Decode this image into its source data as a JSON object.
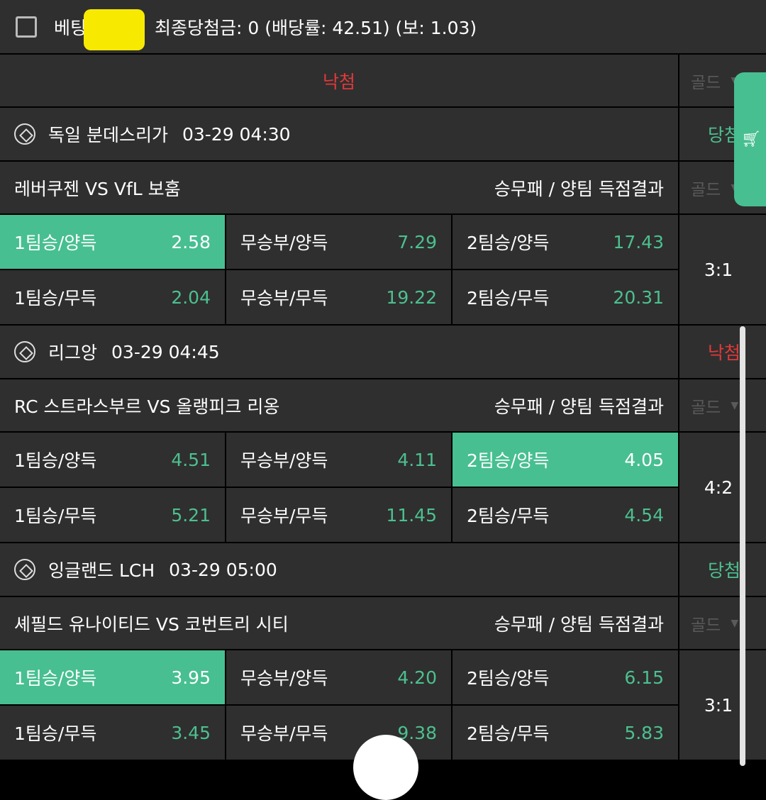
{
  "header": {
    "checkbox_checked": false,
    "label": "베팅",
    "summary": "최종당첨금: 0 (배당률: 42.51) (보: 1.03)"
  },
  "overall_result": "낙첨",
  "gold_label": "골드",
  "colors": {
    "accent": "#47bf91",
    "win": "#4cc08f",
    "lose": "#e0393a"
  },
  "games": [
    {
      "league": "독일 분데스리가",
      "time": "03-29 04:30",
      "result": "당첨",
      "match": "레버쿠젠 VS VfL 보훔",
      "market": "승무패 / 양팀 득점결과",
      "score": "3:1",
      "odds": [
        [
          {
            "label": "1팀승/양득",
            "value": "2.58",
            "selected": true
          },
          {
            "label": "무승부/양득",
            "value": "7.29"
          },
          {
            "label": "2팀승/양득",
            "value": "17.43"
          }
        ],
        [
          {
            "label": "1팀승/무득",
            "value": "2.04"
          },
          {
            "label": "무승부/무득",
            "value": "19.22"
          },
          {
            "label": "2팀승/무득",
            "value": "20.31"
          }
        ]
      ]
    },
    {
      "league": "리그앙",
      "time": "03-29 04:45",
      "result": "낙첨",
      "match": "RC 스트라스부르 VS 올랭피크 리옹",
      "market": "승무패 / 양팀 득점결과",
      "score": "4:2",
      "odds": [
        [
          {
            "label": "1팀승/양득",
            "value": "4.51"
          },
          {
            "label": "무승부/양득",
            "value": "4.11"
          },
          {
            "label": "2팀승/양득",
            "value": "4.05",
            "selected": true
          }
        ],
        [
          {
            "label": "1팀승/무득",
            "value": "5.21"
          },
          {
            "label": "무승부/무득",
            "value": "11.45"
          },
          {
            "label": "2팀승/무득",
            "value": "4.54"
          }
        ]
      ]
    },
    {
      "league": "잉글랜드 LCH",
      "time": "03-29 05:00",
      "result": "당첨",
      "match": "셰필드 유나이티드 VS 코번트리 시티",
      "market": "승무패 / 양팀 득점결과",
      "score": "3:1",
      "odds": [
        [
          {
            "label": "1팀승/양득",
            "value": "3.95",
            "selected": true
          },
          {
            "label": "무승부/양득",
            "value": "4.20"
          },
          {
            "label": "2팀승/양득",
            "value": "6.15"
          }
        ],
        [
          {
            "label": "1팀승/무득",
            "value": "3.45"
          },
          {
            "label": "무승부/무득",
            "value": "9.38"
          },
          {
            "label": "2팀승/무득",
            "value": "5.83"
          }
        ]
      ]
    }
  ]
}
